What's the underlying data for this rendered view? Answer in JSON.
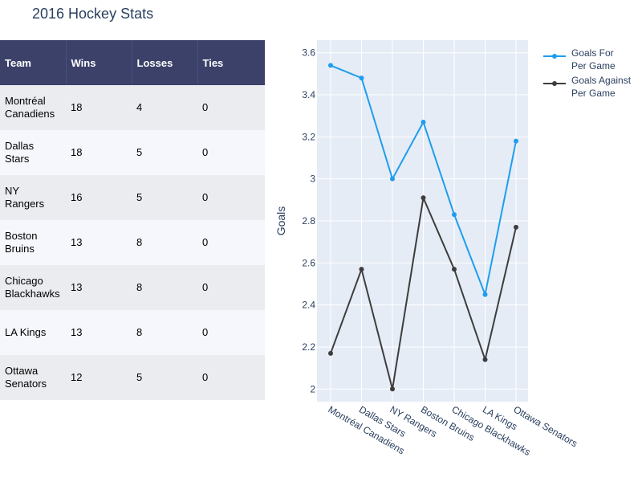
{
  "title": "2016 Hockey Stats",
  "table": {
    "headers": [
      "Team",
      "Wins",
      "Losses",
      "Ties"
    ],
    "rows": [
      {
        "team": "Montréal Canadiens",
        "wins": "18",
        "losses": "4",
        "ties": "0"
      },
      {
        "team": "Dallas Stars",
        "wins": "18",
        "losses": "5",
        "ties": "0"
      },
      {
        "team": "NY Rangers",
        "wins": "16",
        "losses": "5",
        "ties": "0"
      },
      {
        "team": "Boston Bruins",
        "wins": "13",
        "losses": "8",
        "ties": "0"
      },
      {
        "team": "Chicago Blackhawks",
        "wins": "13",
        "losses": "8",
        "ties": "0"
      },
      {
        "team": "LA Kings",
        "wins": "13",
        "losses": "8",
        "ties": "0"
      },
      {
        "team": "Ottawa Senators",
        "wins": "12",
        "losses": "5",
        "ties": "0"
      }
    ]
  },
  "colors": {
    "header_bg": "#3b4169",
    "row_odd": "#ebecf0",
    "row_even": "#f5f7fc",
    "plot_bg": "#e5ecf6",
    "goals_for": "#1f9ded",
    "goals_against": "#3d3d3d",
    "axis_text": "#2a3f5f"
  },
  "chart_data": {
    "type": "line",
    "categories": [
      "Montréal Canadiens",
      "Dallas Stars",
      "NY Rangers",
      "Boston Bruins",
      "Chicago Blackhawks",
      "LA Kings",
      "Ottawa Senators"
    ],
    "series": [
      {
        "name": "Goals For Per Game",
        "values": [
          3.54,
          3.48,
          3.0,
          3.27,
          2.83,
          2.45,
          3.18
        ]
      },
      {
        "name": "Goals Against Per Game",
        "values": [
          2.17,
          2.57,
          2.0,
          2.91,
          2.57,
          2.14,
          2.77
        ]
      }
    ],
    "ylabel": "Goals",
    "yticks": [
      "2",
      "2.2",
      "2.4",
      "2.6",
      "2.8",
      "3",
      "3.2",
      "3.4",
      "3.6"
    ],
    "ylim": [
      1.94,
      3.66
    ],
    "legend_position": "top-right",
    "grid": true
  }
}
